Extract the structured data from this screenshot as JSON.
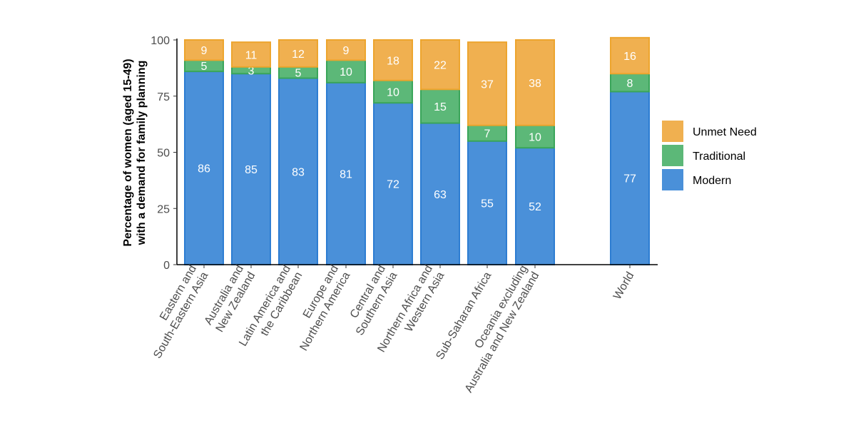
{
  "chart_data": {
    "type": "bar",
    "stacked": true,
    "ylabel": [
      "Percentage of women (aged 15-49)",
      "with a demand for family planning"
    ],
    "ylim": [
      0,
      100
    ],
    "yticks": [
      0,
      25,
      50,
      75,
      100
    ],
    "grid": false,
    "legend_position": "right",
    "categories": [
      [
        "Eastern and",
        "South-Eastern Asia"
      ],
      [
        "Australia and",
        "New Zealand"
      ],
      [
        "Latin America and",
        "the Caribbean"
      ],
      [
        "Europe and",
        "Northern America"
      ],
      [
        "Central and",
        "Southern Asia"
      ],
      [
        "Northern Africa and",
        "Western Asia"
      ],
      [
        "Sub-Saharan Africa"
      ],
      [
        "Oceania excluding",
        "Australia and New Zealand"
      ],
      [
        "World"
      ]
    ],
    "series": [
      {
        "name": "Modern",
        "color": "#4a90d9",
        "edge": "#2d7dd2",
        "values": [
          86,
          85,
          83,
          81,
          72,
          63,
          55,
          52,
          77
        ]
      },
      {
        "name": "Traditional",
        "color": "#5cb878",
        "edge": "#3aa55a",
        "values": [
          5,
          3,
          5,
          10,
          10,
          15,
          7,
          10,
          8
        ]
      },
      {
        "name": "Unmet Need",
        "color": "#f0b050",
        "edge": "#eda52e",
        "values": [
          9,
          11,
          12,
          9,
          18,
          22,
          37,
          38,
          16
        ]
      }
    ],
    "legend_order": [
      "Unmet Need",
      "Traditional",
      "Modern"
    ]
  }
}
